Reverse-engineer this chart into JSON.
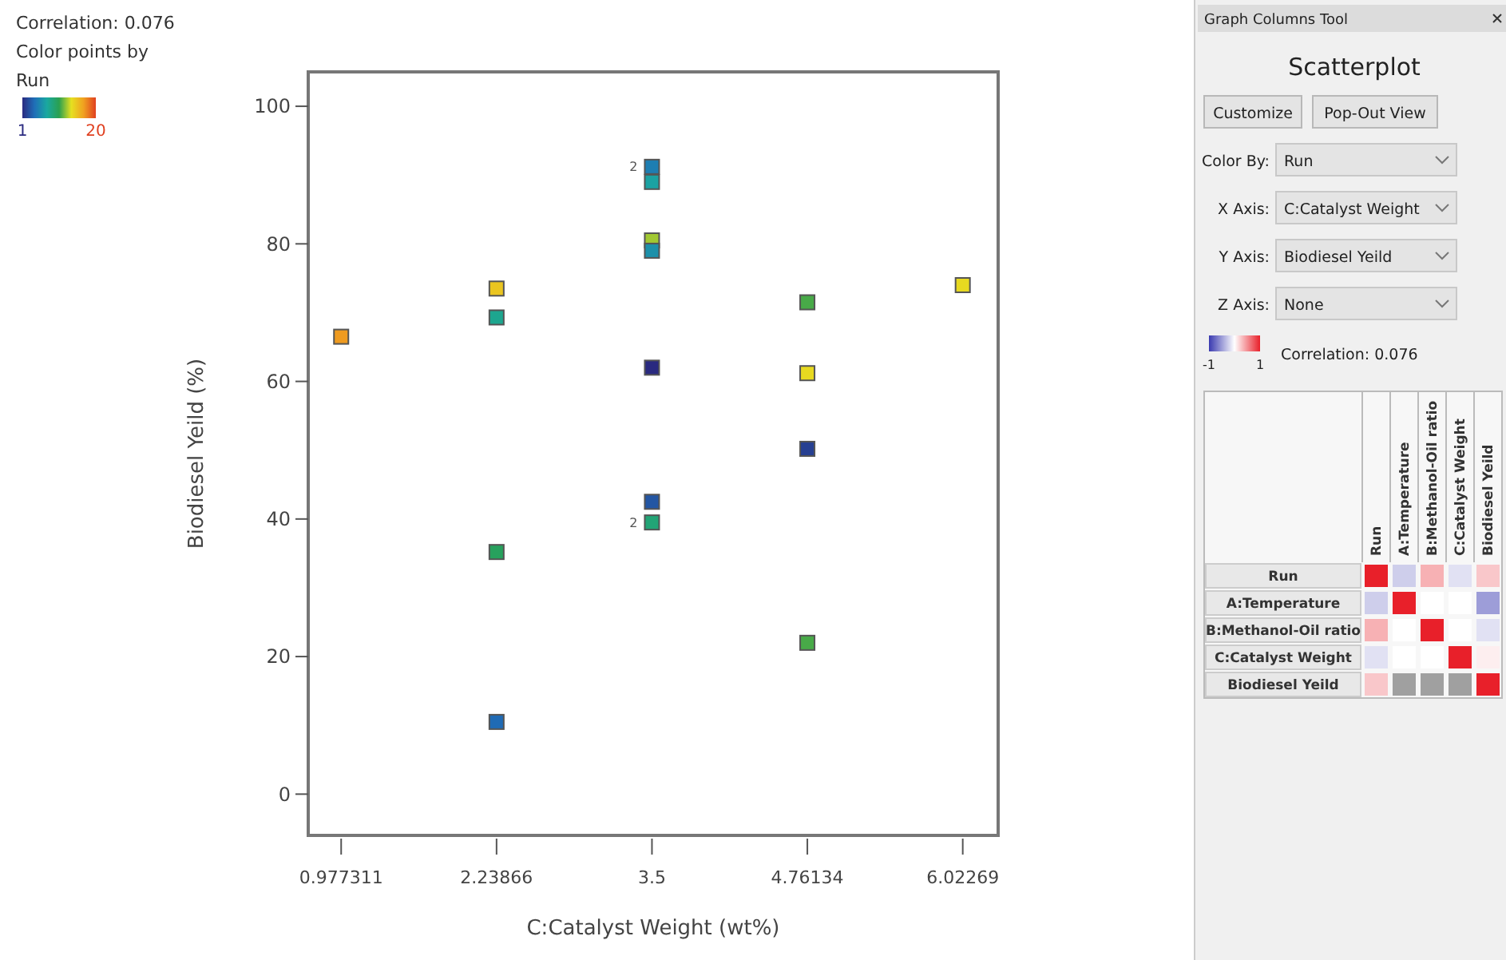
{
  "chart_data": [
    {
      "type": "scatter",
      "xlabel": "C:Catalyst Weight  (wt%)",
      "ylabel": "Biodiesel Yeild (%)",
      "clabel": "Color points by Run",
      "clim": [
        1,
        20
      ],
      "cticks": [
        1,
        20
      ],
      "marker": "square",
      "grid": false,
      "xlim": [
        0.71,
        6.31
      ],
      "xticks": [
        0.977311,
        2.23866,
        3.5,
        4.76134,
        6.02269
      ],
      "ylim": [
        -6,
        105
      ],
      "yticks": [
        0,
        20,
        40,
        60,
        80,
        100
      ],
      "series": [
        {
          "x": [
            0.977311,
            2.23866,
            2.23866,
            2.23866,
            2.23866,
            3.5,
            3.5,
            3.5,
            3.5,
            3.5,
            3.5,
            3.5,
            4.76134,
            4.76134,
            4.76134,
            4.76134,
            6.02269
          ],
          "values": [
            66.5,
            73.5,
            69.3,
            35.2,
            10.5,
            91.2,
            89,
            80.5,
            79,
            62,
            42.5,
            39.5,
            71.5,
            61.2,
            50.2,
            22,
            74
          ],
          "cvalues": [
            17,
            15,
            8,
            10,
            4,
            5,
            7,
            12.5,
            6,
            1,
            3,
            9,
            11,
            14,
            2,
            11,
            14
          ]
        }
      ],
      "annotations": [
        "Correlation: 0.076",
        {
          "text": "2",
          "x": 3.5,
          "y": 91.2
        },
        {
          "text": "2",
          "x": 3.5,
          "y": 39.5
        }
      ]
    },
    {
      "type": "other",
      "title": "Graph Columns Tool",
      "subtitle": "Scatterplot",
      "annotations": [
        "Customize",
        "Pop-Out View",
        "Color By:",
        "Run",
        "X Axis:",
        "C:Catalyst Weight",
        "Y Axis:",
        "Biodiesel Yeild",
        "Z Axis:",
        "None",
        "Correlation: 0.076"
      ]
    },
    {
      "type": "heatmap",
      "categories": [
        "Run",
        "A:Temperature",
        "B:Methanol-Oil ratio",
        "C:Catalyst Weight",
        "Biodiesel Yeild"
      ],
      "y_categories": [
        "Run",
        "A:Temperature",
        "B:Methanol-Oil ratio",
        "C:Catalyst Weight",
        "Biodiesel Yeild"
      ],
      "clim": [
        -1,
        1
      ],
      "cticks": [
        -1,
        1
      ],
      "cells": [
        [
          1,
          -0.25,
          0.35,
          -0.15,
          0.25
        ],
        [
          -0.25,
          1,
          0,
          0,
          -0.5
        ],
        [
          0.35,
          0,
          1,
          0,
          -0.15
        ],
        [
          -0.15,
          0,
          0,
          1,
          0.076
        ],
        [
          0.25,
          null,
          null,
          null,
          1
        ]
      ]
    }
  ]
}
